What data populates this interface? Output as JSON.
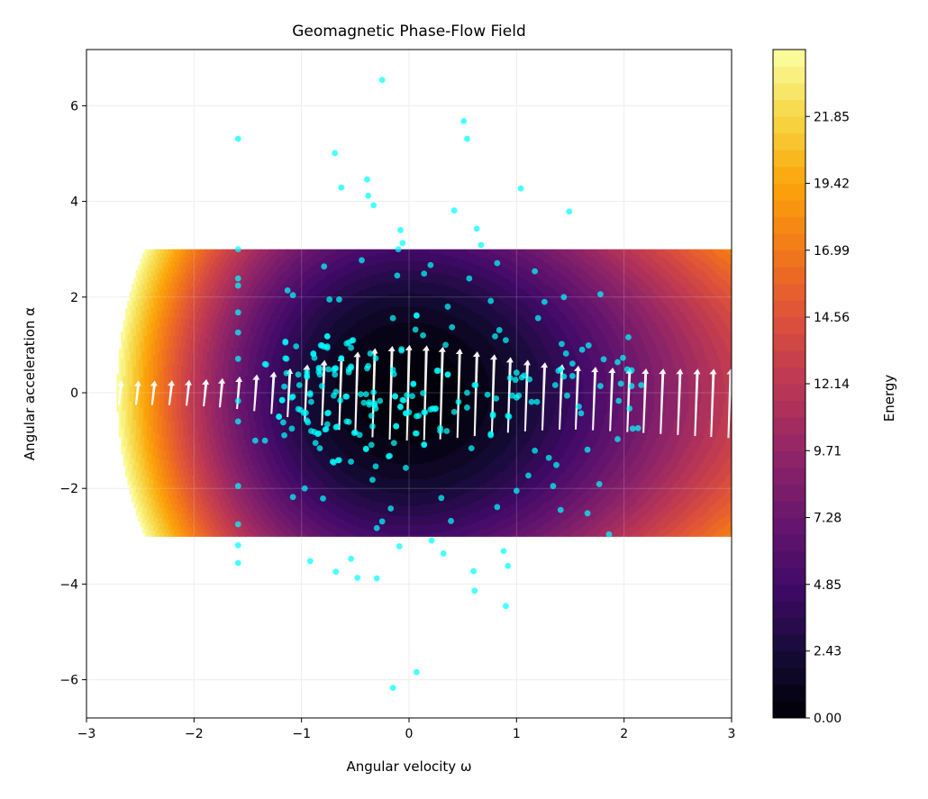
{
  "chart_data": {
    "type": "contour+quiver+scatter",
    "title": "Geomagnetic Phase-Flow Field",
    "xlabel": "Angular velocity ω",
    "ylabel": "Angular acceleration α",
    "xlim": [
      -3,
      3
    ],
    "ylim": [
      -6.8,
      7.2
    ],
    "xticks": [
      "−3",
      "−2",
      "−1",
      "0",
      "1",
      "2",
      "3"
    ],
    "xtick_values": [
      -3,
      -2,
      -1,
      0,
      1,
      2,
      3
    ],
    "yticks": [
      "−6",
      "−4",
      "−2",
      "0",
      "2",
      "4",
      "6"
    ],
    "ytick_values": [
      -6,
      -4,
      -2,
      0,
      2,
      4,
      6
    ],
    "grid": true,
    "colormap": "inferno",
    "colorbar": {
      "label": "Energy",
      "range": [
        0,
        24.28
      ],
      "levels": 40,
      "ticks": [
        "0.00",
        "2.43",
        "4.85",
        "7.28",
        "9.71",
        "12.14",
        "14.56",
        "16.99",
        "19.42",
        "21.85"
      ],
      "tick_values": [
        0,
        2.43,
        4.85,
        7.28,
        9.71,
        12.14,
        14.56,
        16.99,
        19.42,
        21.85
      ]
    },
    "contour_domain": {
      "omega": [
        -3,
        3
      ],
      "alpha": [
        -3,
        3
      ]
    },
    "quiver": {
      "color": "#ffffff",
      "omega": [
        -2.7,
        -2.54,
        -2.39,
        -2.23,
        -2.07,
        -1.91,
        -1.76,
        -1.6,
        -1.44,
        -1.28,
        -1.13,
        -0.97,
        -0.81,
        -0.65,
        -0.5,
        -0.34,
        -0.18,
        -0.02,
        0.14,
        0.29,
        0.45,
        0.61,
        0.77,
        0.92,
        1.08,
        1.24,
        1.4,
        1.55,
        1.71,
        1.87,
        2.03,
        2.18,
        2.34,
        2.5,
        2.66,
        2.81,
        2.97
      ]
    },
    "scatter": {
      "color": "#00ffff",
      "points": [
        [
          -0.25,
          6.54
        ],
        [
          -1.59,
          5.31
        ],
        [
          -0.69,
          5.01
        ],
        [
          -0.39,
          4.46
        ],
        [
          -0.63,
          4.29
        ],
        [
          -0.38,
          4.12
        ],
        [
          -0.33,
          3.92
        ],
        [
          -0.08,
          3.4
        ],
        [
          -0.06,
          3.13
        ],
        [
          -0.1,
          3.0
        ],
        [
          -1.59,
          3.0
        ],
        [
          -0.79,
          2.64
        ],
        [
          -0.44,
          2.77
        ],
        [
          -0.11,
          2.45
        ],
        [
          -1.59,
          2.39
        ],
        [
          -1.59,
          2.24
        ],
        [
          -1.13,
          2.14
        ],
        [
          -1.08,
          2.04
        ],
        [
          -0.74,
          1.95
        ],
        [
          -0.65,
          1.95
        ],
        [
          -1.59,
          1.68
        ],
        [
          -0.15,
          1.56
        ],
        [
          -1.59,
          1.26
        ],
        [
          -1.15,
          1.07
        ],
        [
          -1.05,
          0.97
        ],
        [
          -0.76,
          1.18
        ],
        [
          -0.82,
          0.99
        ],
        [
          -0.79,
          0.96
        ],
        [
          -0.76,
          0.97
        ],
        [
          -0.58,
          1.03
        ],
        [
          -0.53,
          1.09
        ],
        [
          -0.54,
          0.94
        ],
        [
          -0.89,
          0.82
        ],
        [
          -0.88,
          0.73
        ],
        [
          -1.15,
          0.72
        ],
        [
          -1.59,
          0.71
        ],
        [
          -1.34,
          0.6
        ],
        [
          -0.63,
          0.72
        ],
        [
          -0.36,
          0.82
        ],
        [
          -0.31,
          0.72
        ],
        [
          -0.07,
          0.91
        ],
        [
          -0.15,
          0.48
        ],
        [
          -0.38,
          0.56
        ],
        [
          -0.39,
          0.51
        ],
        [
          -0.54,
          0.52
        ],
        [
          -0.56,
          0.49
        ],
        [
          -0.68,
          0.51
        ],
        [
          -0.75,
          0.49
        ],
        [
          -0.84,
          0.52
        ],
        [
          -0.95,
          0.43
        ],
        [
          -0.84,
          0.44
        ],
        [
          -0.83,
          0.38
        ],
        [
          -0.95,
          0.36
        ],
        [
          -1.03,
          0.38
        ],
        [
          -1.14,
          0.41
        ],
        [
          0.51,
          5.68
        ],
        [
          0.54,
          5.31
        ],
        [
          1.04,
          4.27
        ],
        [
          0.42,
          3.81
        ],
        [
          1.49,
          3.79
        ],
        [
          0.63,
          3.43
        ],
        [
          0.67,
          3.09
        ],
        [
          0.2,
          2.67
        ],
        [
          0.14,
          2.49
        ],
        [
          0.82,
          2.71
        ],
        [
          0.56,
          2.39
        ],
        [
          1.17,
          2.54
        ],
        [
          0.76,
          1.92
        ],
        [
          1.44,
          2.0
        ],
        [
          1.78,
          2.06
        ],
        [
          1.26,
          1.9
        ],
        [
          0.36,
          1.8
        ],
        [
          0.07,
          1.62
        ],
        [
          1.2,
          1.56
        ],
        [
          0.06,
          1.32
        ],
        [
          0.13,
          1.2
        ],
        [
          0.4,
          1.37
        ],
        [
          0.84,
          1.31
        ],
        [
          0.8,
          1.18
        ],
        [
          0.9,
          1.1
        ],
        [
          0.34,
          1.0
        ],
        [
          1.42,
          1.02
        ],
        [
          1.46,
          0.82
        ],
        [
          1.52,
          0.61
        ],
        [
          1.61,
          0.9
        ],
        [
          1.67,
          0.99
        ],
        [
          2.04,
          1.16
        ],
        [
          1.81,
          0.7
        ],
        [
          1.94,
          0.64
        ],
        [
          1.99,
          0.73
        ],
        [
          2.03,
          0.49
        ],
        [
          2.07,
          0.47
        ],
        [
          0.27,
          0.46
        ],
        [
          0.36,
          0.38
        ],
        [
          1.0,
          0.42
        ],
        [
          1.07,
          0.36
        ],
        [
          0.94,
          0.31
        ],
        [
          1.39,
          0.46
        ],
        [
          1.41,
          0.49
        ],
        [
          1.44,
          0.34
        ],
        [
          1.52,
          0.35
        ],
        [
          1.36,
          0.16
        ],
        [
          1.78,
          0.14
        ],
        [
          1.97,
          0.19
        ],
        [
          2.07,
          0.14
        ],
        [
          2.16,
          0.16
        ],
        [
          0.62,
          0.16
        ],
        [
          0.04,
          0.19
        ],
        [
          -1.59,
          -0.17
        ],
        [
          -1.59,
          -0.6
        ],
        [
          -1.18,
          -0.16
        ],
        [
          -1.09,
          -0.1
        ],
        [
          -0.92,
          -0.04
        ],
        [
          -0.91,
          -0.19
        ],
        [
          -1.21,
          -0.5
        ],
        [
          -1.17,
          -0.62
        ],
        [
          -1.03,
          -0.34
        ],
        [
          -0.96,
          -0.42
        ],
        [
          -0.94,
          -0.62
        ],
        [
          -1.09,
          -0.75
        ],
        [
          -1.16,
          -0.89
        ],
        [
          -1.43,
          -1.0
        ],
        [
          -1.34,
          -1.0
        ],
        [
          -0.76,
          -0.43
        ],
        [
          -0.88,
          -0.82
        ],
        [
          -0.84,
          -0.85
        ],
        [
          -0.78,
          -0.77
        ],
        [
          -0.76,
          -0.66
        ],
        [
          -0.68,
          -0.72
        ],
        [
          -0.56,
          -0.61
        ],
        [
          -0.87,
          -1.05
        ],
        [
          -0.83,
          -1.16
        ],
        [
          -0.71,
          -1.44
        ],
        [
          -0.66,
          -1.41
        ],
        [
          -0.54,
          -1.44
        ],
        [
          -0.51,
          -0.84
        ],
        [
          -0.46,
          -0.88
        ],
        [
          -0.4,
          -1.17
        ],
        [
          -0.35,
          -1.09
        ],
        [
          -0.35,
          -0.48
        ],
        [
          -0.34,
          -0.7
        ],
        [
          -0.19,
          -1.33
        ],
        [
          -0.31,
          -1.54
        ],
        [
          -0.14,
          -1.05
        ],
        [
          -0.12,
          -0.7
        ],
        [
          -0.03,
          -1.57
        ],
        [
          -0.34,
          -1.82
        ],
        [
          -1.59,
          -1.95
        ],
        [
          -0.97,
          -2.0
        ],
        [
          -1.08,
          -2.18
        ],
        [
          -0.8,
          -2.21
        ],
        [
          -0.17,
          -2.42
        ],
        [
          -0.25,
          -2.69
        ],
        [
          -0.3,
          -2.83
        ],
        [
          -1.59,
          -2.75
        ],
        [
          -1.59,
          -3.19
        ],
        [
          -1.59,
          -3.56
        ],
        [
          -0.92,
          -3.52
        ],
        [
          -0.54,
          -3.47
        ],
        [
          -0.68,
          -3.74
        ],
        [
          -0.48,
          -3.87
        ],
        [
          -0.3,
          -3.88
        ],
        [
          -0.09,
          -3.21
        ],
        [
          -0.15,
          -6.17
        ],
        [
          -0.68,
          0.02
        ],
        [
          -0.59,
          -0.08
        ],
        [
          -0.45,
          -0.03
        ],
        [
          -0.37,
          -0.2
        ],
        [
          -0.32,
          -0.26
        ],
        [
          -0.27,
          -0.17
        ],
        [
          -0.13,
          -0.08
        ],
        [
          -0.05,
          -0.16
        ],
        [
          -0.08,
          -0.29
        ],
        [
          -0.03,
          -0.43
        ],
        [
          0.21,
          -3.09
        ],
        [
          0.32,
          -3.36
        ],
        [
          0.88,
          -3.31
        ],
        [
          0.92,
          -3.62
        ],
        [
          0.6,
          -3.73
        ],
        [
          0.61,
          -4.14
        ],
        [
          0.9,
          -4.46
        ],
        [
          0.07,
          -5.84
        ],
        [
          0.3,
          -2.2
        ],
        [
          0.39,
          -2.68
        ],
        [
          0.82,
          -2.39
        ],
        [
          1.0,
          -2.05
        ],
        [
          1.11,
          -1.73
        ],
        [
          1.34,
          -1.95
        ],
        [
          1.41,
          -2.45
        ],
        [
          1.66,
          -2.52
        ],
        [
          1.77,
          -1.91
        ],
        [
          1.86,
          -2.96
        ],
        [
          1.17,
          -1.21
        ],
        [
          1.3,
          -1.36
        ],
        [
          1.37,
          -1.51
        ],
        [
          1.66,
          -1.19
        ],
        [
          1.94,
          -0.97
        ],
        [
          2.08,
          -0.75
        ],
        [
          2.13,
          -0.74
        ],
        [
          0.58,
          -1.16
        ],
        [
          0.14,
          -1.09
        ],
        [
          0.06,
          -0.85
        ],
        [
          0.29,
          -0.74
        ],
        [
          0.35,
          -0.8
        ],
        [
          0.76,
          -0.89
        ],
        [
          0.42,
          -0.4
        ],
        [
          0.46,
          -0.19
        ],
        [
          0.54,
          -0.31
        ],
        [
          0.78,
          -0.48
        ],
        [
          0.93,
          -0.5
        ],
        [
          0.22,
          -0.33
        ],
        [
          0.25,
          -0.33
        ],
        [
          0.15,
          -0.41
        ],
        [
          0.09,
          -0.48
        ],
        [
          0.73,
          -0.04
        ],
        [
          0.81,
          -0.12
        ],
        [
          0.96,
          -0.06
        ],
        [
          1.0,
          -0.1
        ],
        [
          1.14,
          -0.19
        ],
        [
          1.47,
          -0.06
        ],
        [
          1.58,
          -0.29
        ],
        [
          1.6,
          -0.43
        ],
        [
          1.95,
          -0.17
        ],
        [
          2.05,
          -0.33
        ],
        [
          0.07,
          1.61
        ],
        [
          -0.07,
          0.88
        ],
        [
          -0.63,
          0.72
        ],
        [
          -0.54,
          0.55
        ],
        [
          -0.56,
          0.43
        ],
        [
          -0.69,
          0.51
        ],
        [
          -0.69,
          0.38
        ],
        [
          -0.14,
          0.39
        ],
        [
          0.04,
          0.18
        ],
        [
          0.13,
          -0.01
        ],
        [
          -0.13,
          -0.07
        ],
        [
          -0.06,
          -0.15
        ],
        [
          -0.02,
          -0.05
        ],
        [
          0.03,
          -0.07
        ],
        [
          -0.08,
          -0.3
        ],
        [
          -0.03,
          -0.43
        ],
        [
          0.0,
          -0.41
        ],
        [
          0.07,
          -0.49
        ],
        [
          0.14,
          -0.41
        ],
        [
          0.2,
          -0.35
        ],
        [
          0.24,
          -0.34
        ],
        [
          -0.4,
          -0.03
        ],
        [
          -0.33,
          0.01
        ],
        [
          -0.42,
          -0.21
        ],
        [
          -0.37,
          -0.25
        ],
        [
          -0.32,
          -0.22
        ],
        [
          -0.31,
          -0.33
        ],
        [
          -0.12,
          -0.7
        ],
        [
          0.07,
          -0.85
        ],
        [
          0.14,
          -1.08
        ],
        [
          -0.4,
          -1.18
        ],
        [
          -0.18,
          -1.32
        ],
        [
          0.29,
          -0.8
        ],
        [
          0.54,
          0.0
        ],
        [
          0.61,
          0.16
        ],
        [
          0.92,
          -0.48
        ],
        [
          0.78,
          -0.45
        ],
        [
          0.76,
          -0.86
        ],
        [
          0.99,
          0.27
        ],
        [
          1.05,
          0.32
        ],
        [
          1.12,
          0.28
        ],
        [
          1.02,
          -0.06
        ],
        [
          1.19,
          -0.19
        ],
        [
          0.36,
          0.38
        ],
        [
          0.26,
          0.46
        ],
        [
          -1.33,
          0.59
        ],
        [
          -1.15,
          1.05
        ],
        [
          -1.14,
          0.71
        ],
        [
          -1.16,
          0.13
        ],
        [
          -1.18,
          -0.15
        ],
        [
          -1.08,
          -0.08
        ],
        [
          -1.02,
          0.16
        ],
        [
          -0.95,
          0.33
        ],
        [
          -0.92,
          -0.01
        ],
        [
          -0.83,
          0.5
        ],
        [
          -0.81,
          0.14
        ],
        [
          -0.7,
          0.48
        ],
        [
          -0.64,
          -0.16
        ],
        [
          -0.7,
          -0.06
        ],
        [
          -0.58,
          -0.08
        ],
        [
          -0.58,
          -0.6
        ],
        [
          -0.75,
          -0.42
        ],
        [
          -0.77,
          -0.76
        ],
        [
          -0.67,
          -0.71
        ],
        [
          -0.95,
          -0.58
        ],
        [
          -1.01,
          -0.36
        ],
        [
          -0.98,
          -0.42
        ],
        [
          -1.21,
          -0.5
        ],
        [
          -0.91,
          -0.8
        ],
        [
          -0.85,
          -0.86
        ],
        [
          -0.5,
          -0.83
        ],
        [
          -0.65,
          -1.41
        ],
        [
          -0.7,
          -1.46
        ],
        [
          -0.89,
          0.81
        ],
        [
          -0.81,
          0.99
        ],
        [
          -0.76,
          1.18
        ],
        [
          -0.56,
          1.05
        ],
        [
          -0.52,
          1.1
        ],
        [
          -0.76,
          0.94
        ]
      ]
    }
  }
}
